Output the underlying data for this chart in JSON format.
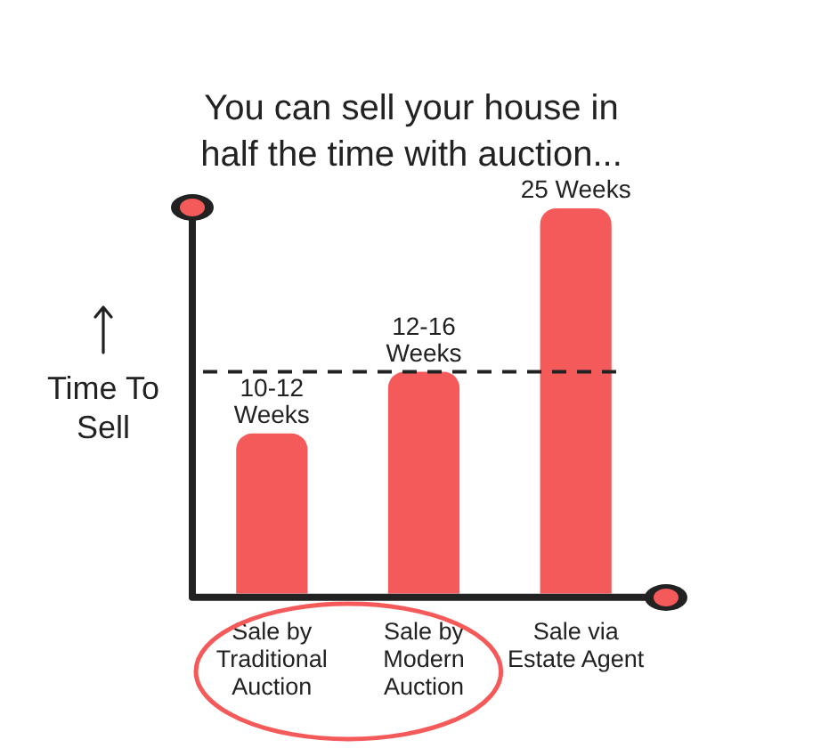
{
  "chart_data": {
    "type": "bar",
    "title": "You can sell your house in half the time with auction...",
    "ylabel": "Time To Sell",
    "categories": [
      "Sale by\nTraditional\nAuction",
      "Sale by\nModern\nAuction",
      "Sale via\nEstate Agent"
    ],
    "values": [
      10.4,
      14.4,
      25
    ],
    "color": "#f55a5a",
    "value_labels": [
      "10-12\nWeeks",
      "12-16\nWeeks",
      "25 Weeks"
    ],
    "ref_lines": [
      {
        "axis": "y",
        "value": 14.4,
        "color": "#222222",
        "line_style": "dashed"
      }
    ]
  }
}
